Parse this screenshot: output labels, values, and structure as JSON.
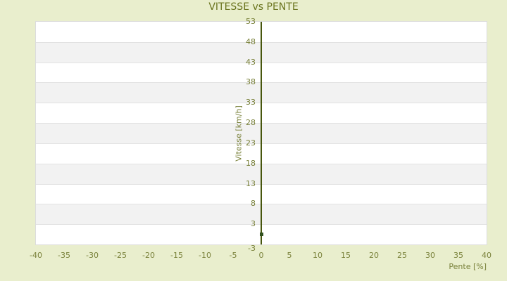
{
  "page": {
    "background": "#e9eecd"
  },
  "chart_data": {
    "type": "scatter",
    "title": "VITESSE vs PENTE",
    "xlabel": "Pente [%]",
    "ylabel": "Vitesse [km/h]",
    "xlim": [
      -40,
      40
    ],
    "ylim": [
      -2,
      53
    ],
    "x_ticks": [
      -40,
      -35,
      -30,
      -25,
      -20,
      -15,
      -10,
      -5,
      0,
      5,
      10,
      15,
      20,
      25,
      30,
      35,
      40
    ],
    "y_ticks": [
      53,
      48,
      43,
      38,
      33,
      28,
      23,
      18,
      13,
      8,
      3,
      -3
    ],
    "grid": "horizontal alternating bands between y ticks; no vertical gridlines; y-axis line drawn at x=0",
    "legend": "none",
    "series": [
      {
        "name": "Vitesse",
        "points": [
          [
            0,
            0.5
          ]
        ],
        "marker": "small dark square"
      }
    ]
  },
  "colors": {
    "background": "#e9eecd",
    "title_text": "#6b751f",
    "tick_text": "#79813a",
    "axis_line": "#47560d",
    "point": "#31511f",
    "band_light": "#ffffff",
    "band_dark": "#f2f2f2",
    "gridline": "#e2e2e2",
    "plot_border": "#dcdcdc"
  }
}
